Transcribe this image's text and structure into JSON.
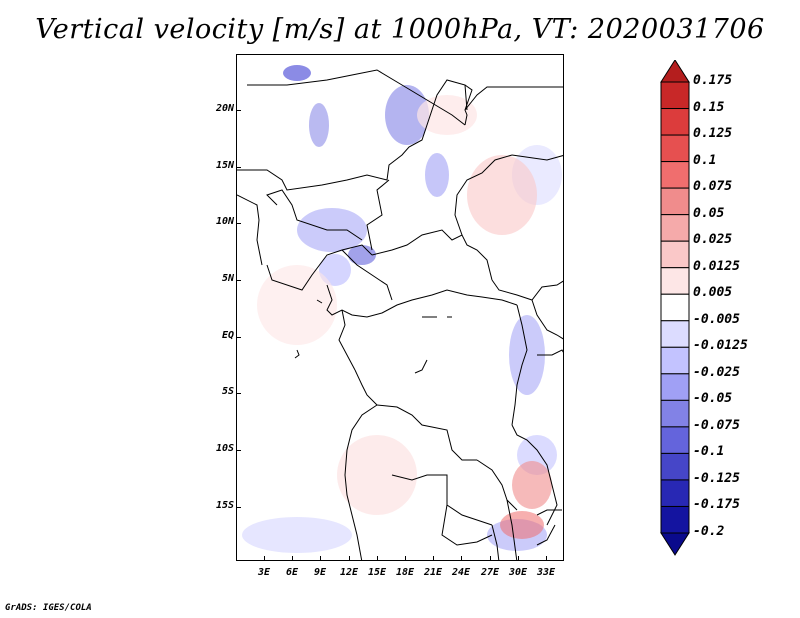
{
  "title": "Vertical velocity [m/s] at 1000hPa, VT: 2020031706",
  "credit": "GrADS: IGES/COLA",
  "map": {
    "lat_labels": [
      "20N",
      "15N",
      "10N",
      "5N",
      "EQ",
      "5S",
      "10S",
      "15S"
    ],
    "lon_labels": [
      "3E",
      "6E",
      "9E",
      "12E",
      "15E",
      "18E",
      "21E",
      "24E",
      "27E",
      "30E",
      "33E"
    ]
  },
  "colorbar": {
    "labels": [
      "0.175",
      "0.15",
      "0.125",
      "0.1",
      "0.075",
      "0.05",
      "0.025",
      "0.0125",
      "0.005",
      "-0.005",
      "-0.0125",
      "-0.025",
      "-0.05",
      "-0.075",
      "-0.1",
      "-0.125",
      "-0.175",
      "-0.2"
    ],
    "colors": [
      "#b41e1e",
      "#c82828",
      "#dc3c3c",
      "#e65050",
      "#f06e6e",
      "#f08c8c",
      "#f5aaaa",
      "#fac8c8",
      "#fde6e6",
      "#ffffff",
      "#dcdcff",
      "#c3c3ff",
      "#a0a0f5",
      "#8282e6",
      "#6464dc",
      "#4646c8",
      "#2828b4",
      "#1414a0",
      "#0a0a8c"
    ]
  }
}
